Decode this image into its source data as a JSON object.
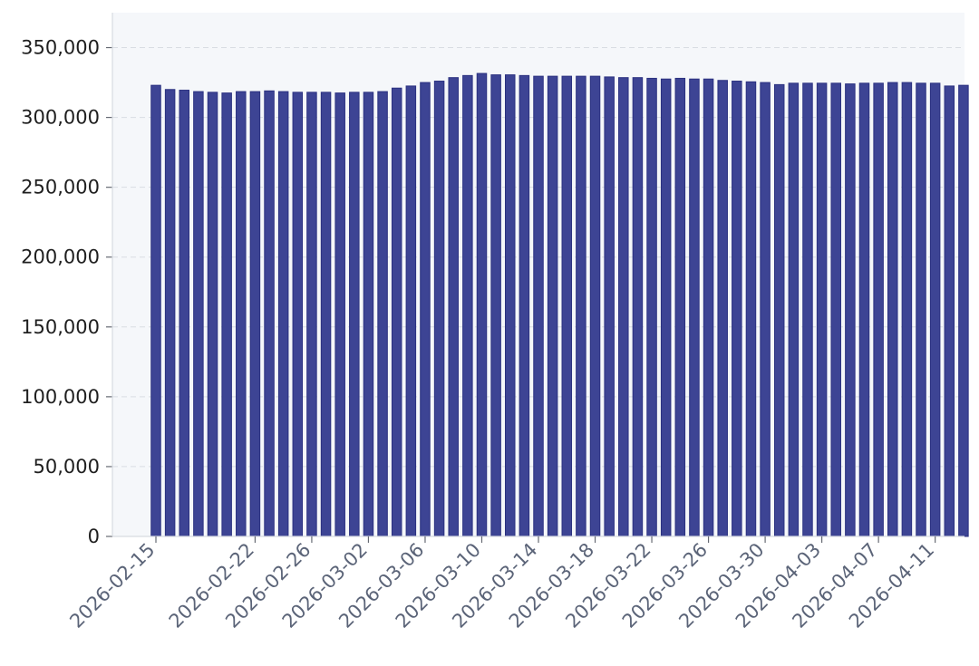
{
  "chart_data": {
    "type": "bar",
    "title": "",
    "xlabel": "",
    "ylabel": "",
    "ylim": [
      0,
      375000
    ],
    "yticks": [
      0,
      50000,
      100000,
      150000,
      200000,
      250000,
      300000,
      350000
    ],
    "ytick_labels": [
      "0",
      "50,000",
      "100,000",
      "150,000",
      "200,000",
      "250,000",
      "300,000",
      "350,000"
    ],
    "grid": true,
    "legend": "none",
    "bar_color": "#3d4494",
    "bar_edge_color": "#2b3180",
    "background_color": "#f5f7fa",
    "grid_color": "#d9dde3",
    "categories": [
      "2026-02-15",
      "2026-02-16",
      "2026-02-17",
      "2026-02-18",
      "2026-02-19",
      "2026-02-20",
      "2026-02-21",
      "2026-02-22",
      "2026-02-23",
      "2026-02-24",
      "2026-02-25",
      "2026-02-26",
      "2026-02-27",
      "2026-02-28",
      "2026-03-01",
      "2026-03-02",
      "2026-03-03",
      "2026-03-04",
      "2026-03-05",
      "2026-03-06",
      "2026-03-07",
      "2026-03-08",
      "2026-03-09",
      "2026-03-10",
      "2026-03-11",
      "2026-03-12",
      "2026-03-13",
      "2026-03-14",
      "2026-03-15",
      "2026-03-16",
      "2026-03-17",
      "2026-03-18",
      "2026-03-19",
      "2026-03-20",
      "2026-03-21",
      "2026-03-22",
      "2026-03-23",
      "2026-03-24",
      "2026-03-25",
      "2026-03-26",
      "2026-03-27",
      "2026-03-28",
      "2026-03-29",
      "2026-03-30",
      "2026-03-31",
      "2026-04-01",
      "2026-04-02",
      "2026-04-03",
      "2026-04-04",
      "2026-04-05",
      "2026-04-06",
      "2026-04-07",
      "2026-04-08",
      "2026-04-09",
      "2026-04-10",
      "2026-04-11",
      "2026-04-12",
      "2026-04-13"
    ],
    "values": [
      323000,
      320000,
      319500,
      318500,
      318000,
      317500,
      318500,
      318500,
      319000,
      318500,
      318000,
      318000,
      318000,
      317500,
      318000,
      318000,
      318500,
      321000,
      322500,
      325000,
      326000,
      328500,
      330000,
      331500,
      330500,
      330500,
      330000,
      329500,
      329500,
      329500,
      329500,
      329500,
      329000,
      328500,
      328500,
      328000,
      327500,
      328000,
      327500,
      327500,
      326500,
      326000,
      325500,
      325000,
      323500,
      324500,
      324500,
      324500,
      324500,
      324000,
      324500,
      324500,
      325000,
      325000,
      324500,
      324500,
      322500,
      323000
    ],
    "xtick_labels": [
      "2026-02-15",
      "2026-02-22",
      "2026-02-26",
      "2026-03-02",
      "2026-03-06",
      "2026-03-10",
      "2026-03-14",
      "2026-03-18",
      "2026-03-22",
      "2026-03-26",
      "2026-03-30",
      "2026-04-03",
      "2026-04-07",
      "2026-04-11"
    ]
  }
}
